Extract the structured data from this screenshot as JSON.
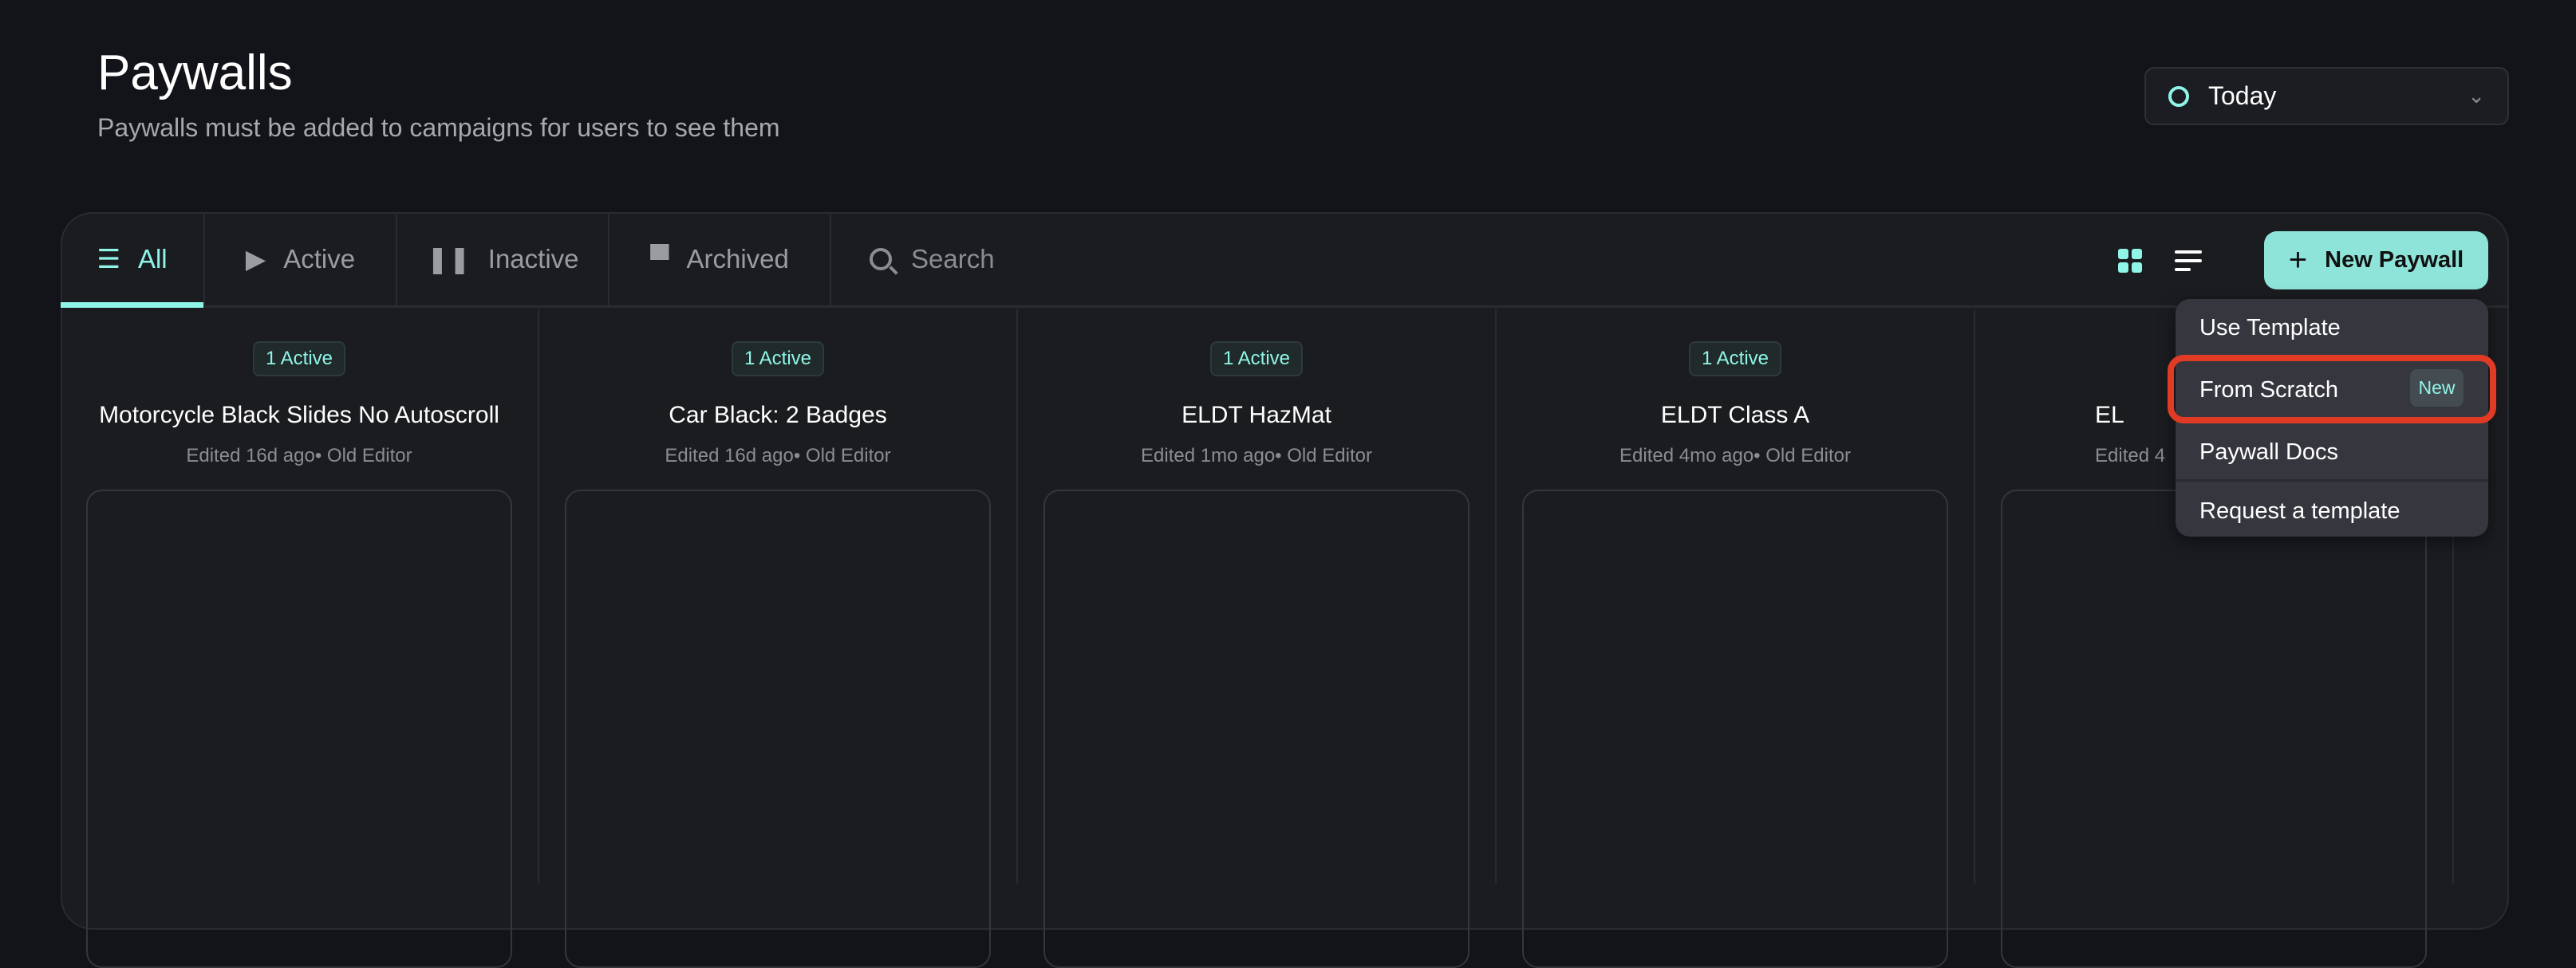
{
  "header": {
    "title": "Paywalls",
    "subtitle": "Paywalls must be added to campaigns for users to see them"
  },
  "date_filter": {
    "value": "Today",
    "icon": "clock-icon"
  },
  "tabs": [
    {
      "label": "All",
      "icon": "list-icon",
      "active": true
    },
    {
      "label": "Active",
      "icon": "play-icon"
    },
    {
      "label": "Inactive",
      "icon": "pause-icon"
    },
    {
      "label": "Archived",
      "icon": "archive-icon"
    }
  ],
  "search": {
    "placeholder": "Search"
  },
  "toolbar": {
    "new_paywall": "New Paywall",
    "view": "grid"
  },
  "menu": {
    "items": [
      "Use Template",
      "From Scratch",
      "Paywall Docs",
      "Request a template"
    ],
    "new_tag": "New"
  },
  "cards": [
    {
      "badge": "1 Active",
      "title": "Motorcycle Black Slides No Autoscroll",
      "meta": "Edited 16d ago• Old Editor"
    },
    {
      "badge": "1 Active",
      "title": "Car Black: 2 Badges",
      "meta": "Edited 16d ago• Old Editor"
    },
    {
      "badge": "1 Active",
      "title": "ELDT HazMat",
      "meta": "Edited 1mo ago• Old Editor"
    },
    {
      "badge": "1 Active",
      "title": "ELDT Class A",
      "meta": "Edited 4mo ago• Old Editor"
    },
    {
      "badge": "",
      "title": "EL",
      "meta": "Edited 4"
    }
  ],
  "colors": {
    "accent": "#8ff5e8",
    "button": "#8ee4d9",
    "highlight": "#e23b25",
    "background": "#131419"
  }
}
